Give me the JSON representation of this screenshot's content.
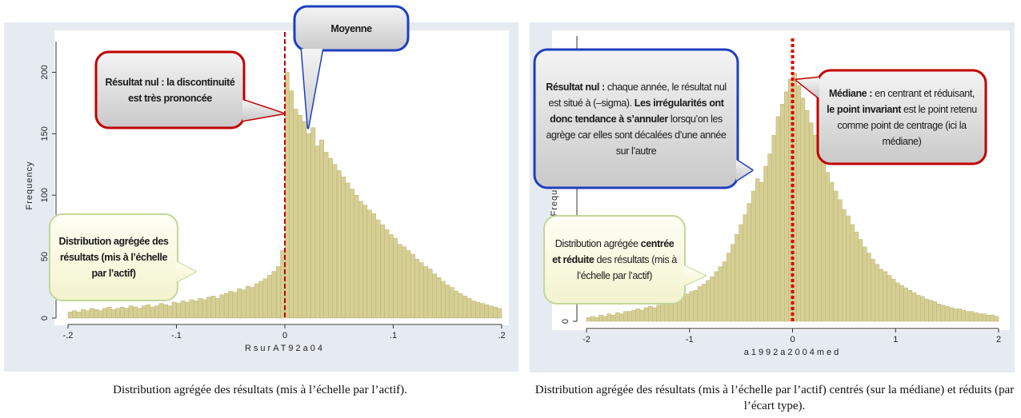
{
  "chart_data": [
    {
      "type": "histogram",
      "bins": [
        -0.2,
        -0.196,
        -0.192,
        -0.188,
        -0.184,
        -0.18,
        -0.176,
        -0.172,
        -0.168,
        -0.164,
        -0.16,
        -0.156,
        -0.152,
        -0.148,
        -0.144,
        -0.14,
        -0.136,
        -0.132,
        -0.128,
        -0.124,
        -0.12,
        -0.116,
        -0.112,
        -0.108,
        -0.104,
        -0.1,
        -0.096,
        -0.092,
        -0.088,
        -0.084,
        -0.08,
        -0.076,
        -0.072,
        -0.068,
        -0.064,
        -0.06,
        -0.056,
        -0.052,
        -0.048,
        -0.044,
        -0.04,
        -0.036,
        -0.032,
        -0.028,
        -0.024,
        -0.02,
        -0.016,
        -0.012,
        -0.008,
        -0.004,
        0,
        0.004,
        0.008,
        0.012,
        0.016,
        0.02,
        0.024,
        0.028,
        0.032,
        0.036,
        0.04,
        0.044,
        0.048,
        0.052,
        0.056,
        0.06,
        0.064,
        0.068,
        0.072,
        0.076,
        0.08,
        0.084,
        0.088,
        0.092,
        0.096,
        0.1,
        0.104,
        0.108,
        0.112,
        0.116,
        0.12,
        0.124,
        0.128,
        0.132,
        0.136,
        0.14,
        0.144,
        0.148,
        0.152,
        0.156,
        0.16,
        0.164,
        0.168,
        0.172,
        0.176,
        0.18,
        0.184,
        0.188,
        0.192,
        0.196,
        0.2
      ],
      "values": [
        5,
        6,
        5,
        7,
        6,
        8,
        7,
        6,
        8,
        9,
        7,
        8,
        9,
        8,
        10,
        9,
        8,
        10,
        11,
        9,
        10,
        12,
        11,
        10,
        13,
        12,
        14,
        13,
        15,
        14,
        16,
        15,
        17,
        18,
        16,
        19,
        20,
        22,
        21,
        24,
        23,
        26,
        25,
        28,
        30,
        32,
        35,
        38,
        42,
        55,
        200,
        185,
        170,
        165,
        160,
        150,
        155,
        140,
        145,
        135,
        130,
        125,
        120,
        115,
        110,
        105,
        100,
        95,
        92,
        88,
        85,
        80,
        76,
        72,
        68,
        65,
        60,
        58,
        55,
        52,
        48,
        45,
        42,
        40,
        36,
        33,
        30,
        27,
        25,
        22,
        20,
        18,
        16,
        14,
        13,
        12,
        11,
        10,
        9,
        8
      ],
      "color": "#d6cf94",
      "xlim": [
        -0.2,
        0.2
      ],
      "xticks": [
        {
          "value": -0.2,
          "label": "-.2"
        },
        {
          "value": -0.1,
          "label": "-.1"
        },
        0,
        {
          "value": 0.1,
          "label": ".1"
        },
        {
          "value": 0.2,
          "label": ".2"
        }
      ],
      "ylim": [
        0,
        225
      ],
      "yticks": [
        0,
        50,
        100,
        150,
        200
      ],
      "x_label": "RsurAT92a04",
      "y_label": "Frequency",
      "reference_line": {
        "x": 0,
        "color": "#c00000"
      },
      "annotations": [
        {
          "segments": [
            {
              "text": "Résultat nul : la discontinuité est très prononcée",
              "bold": true
            }
          ]
        },
        {
          "segments": [
            {
              "text": "Moyenne",
              "bold": true
            }
          ]
        },
        {
          "segments": [
            {
              "text": "Distribution agrégée des résultats (mis à l’échelle par l’actif)",
              "bold": true
            }
          ]
        }
      ],
      "caption": "Distribution agrégée des résultats (mis à l’échelle par l’actif)."
    },
    {
      "type": "histogram",
      "bins": [
        -2,
        -1.96,
        -1.92,
        -1.88,
        -1.84,
        -1.8,
        -1.76,
        -1.72,
        -1.68,
        -1.64,
        -1.6,
        -1.56,
        -1.52,
        -1.48,
        -1.44,
        -1.4,
        -1.36,
        -1.32,
        -1.28,
        -1.24,
        -1.2,
        -1.16,
        -1.12,
        -1.08,
        -1.04,
        -1,
        -0.96,
        -0.92,
        -0.88,
        -0.84,
        -0.8,
        -0.76,
        -0.72,
        -0.68,
        -0.64,
        -0.6,
        -0.56,
        -0.52,
        -0.48,
        -0.44,
        -0.4,
        -0.36,
        -0.32,
        -0.28,
        -0.24,
        -0.2,
        -0.16,
        -0.12,
        -0.08,
        -0.04,
        0,
        0.04,
        0.08,
        0.12,
        0.16,
        0.2,
        0.24,
        0.28,
        0.32,
        0.36,
        0.4,
        0.44,
        0.48,
        0.52,
        0.56,
        0.6,
        0.64,
        0.68,
        0.72,
        0.76,
        0.8,
        0.84,
        0.88,
        0.92,
        0.96,
        1,
        1.04,
        1.08,
        1.12,
        1.16,
        1.2,
        1.24,
        1.28,
        1.32,
        1.36,
        1.4,
        1.44,
        1.48,
        1.52,
        1.56,
        1.6,
        1.64,
        1.68,
        1.72,
        1.76,
        1.8,
        1.84,
        1.88,
        1.92,
        1.96,
        2
      ],
      "values": [
        3,
        4,
        3,
        5,
        4,
        6,
        5,
        7,
        6,
        8,
        8,
        9,
        10,
        9,
        11,
        12,
        11,
        13,
        14,
        15,
        16,
        17,
        18,
        20,
        22,
        24,
        25,
        28,
        30,
        33,
        36,
        40,
        44,
        48,
        55,
        62,
        70,
        78,
        86,
        95,
        105,
        115,
        112,
        125,
        135,
        150,
        165,
        175,
        185,
        195,
        200,
        190,
        180,
        170,
        160,
        150,
        140,
        130,
        120,
        112,
        105,
        98,
        90,
        85,
        78,
        72,
        66,
        60,
        55,
        50,
        46,
        42,
        40,
        37,
        34,
        31,
        29,
        27,
        25,
        23,
        21,
        20,
        18,
        17,
        16,
        14,
        13,
        12,
        11,
        10,
        10,
        9,
        8,
        8,
        7,
        6,
        6,
        5,
        5,
        4
      ],
      "color": "#d6cf94",
      "xlim": [
        -2,
        2
      ],
      "xticks": [
        -2,
        -1,
        0,
        1,
        2
      ],
      "ylim": [
        0,
        230
      ],
      "yticks": [
        0
      ],
      "x_label": "a1992a2004med",
      "y_label": "Frequency",
      "reference_line": {
        "x": 0,
        "color": "#e00000"
      },
      "annotations": [
        {
          "segments": [
            {
              "text": "Résultat nul :",
              "bold": true
            },
            {
              "text": " chaque année, le résultat nul est situé à (–sigma). ",
              "bold": false
            },
            {
              "text": "Les irrégularités ont donc tendance à s’annuler",
              "bold": true
            },
            {
              "text": " lorsqu’on les agrège car elles sont décalées d’une année sur l’autre",
              "bold": false
            }
          ]
        },
        {
          "segments": [
            {
              "text": "Médiane :",
              "bold": true
            },
            {
              "text": " en centrant et réduisant, ",
              "bold": false
            },
            {
              "text": "le point invariant",
              "bold": true
            },
            {
              "text": " est le point retenu comme point de centrage (ici la médiane)",
              "bold": false
            }
          ]
        },
        {
          "segments": [
            {
              "text": "Distribution agrégée ",
              "bold": false
            },
            {
              "text": "centrée et réduite",
              "bold": true
            },
            {
              "text": " des résultats (mis à l’échelle par l’actif)",
              "bold": false
            }
          ]
        }
      ],
      "caption": "Distribution agrégée des résultats (mis à l’échelle par l’actif) centrés (sur la médiane) et réduits (par l’écart type)."
    }
  ]
}
